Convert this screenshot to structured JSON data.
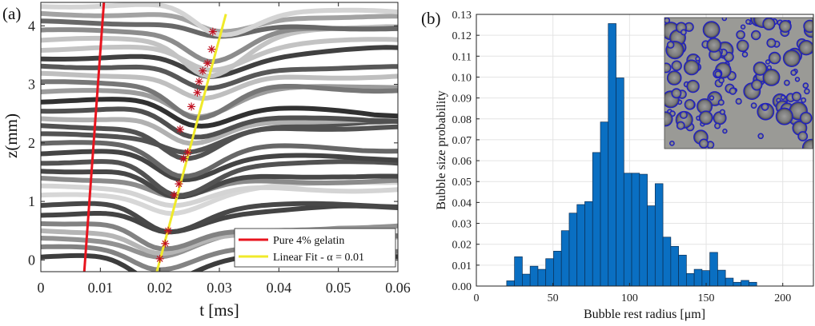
{
  "chart_data": [
    {
      "type": "line",
      "panel_label": "(a)",
      "xlabel": "t [ms]",
      "ylabel": "z(mm)",
      "xlim": [
        0,
        0.06
      ],
      "ylim": [
        -0.2,
        4.4
      ],
      "xticks": [
        "0",
        "0.01",
        "0.02",
        "0.03",
        "0.04",
        "0.05",
        "0.06"
      ],
      "yticks": [
        "0",
        "1",
        "2",
        "3",
        "4"
      ],
      "series": [
        {
          "name": "Pure 4% gelatin",
          "color": "#e8141e",
          "x": [
            0.0073,
            0.0106
          ],
          "y": [
            -0.2,
            4.4
          ]
        },
        {
          "name": "Linear Fit - α = 0.01",
          "color": "#f0ea2a",
          "x": [
            0.0195,
            0.0311
          ],
          "y": [
            -0.2,
            4.2
          ]
        }
      ],
      "legend": [
        "Pure 4% gelatin",
        "Linear Fit - α = 0.01"
      ],
      "legend_symbol": "α",
      "legend_position": "bottom-right",
      "markers": {
        "color": "#c01020",
        "points": [
          [
            0.02,
            0.02
          ],
          [
            0.0209,
            0.28
          ],
          [
            0.0214,
            0.5
          ],
          [
            0.0224,
            1.11
          ],
          [
            0.0232,
            1.3
          ],
          [
            0.024,
            1.73
          ],
          [
            0.0247,
            1.84
          ],
          [
            0.0234,
            2.23
          ],
          [
            0.0253,
            2.62
          ],
          [
            0.0263,
            2.86
          ],
          [
            0.0266,
            3.05
          ],
          [
            0.0272,
            3.23
          ],
          [
            0.028,
            3.36
          ],
          [
            0.0287,
            3.6
          ],
          [
            0.0289,
            3.9
          ]
        ]
      },
      "trace_count": 30,
      "grid": false
    },
    {
      "type": "bar",
      "panel_label": "(b)",
      "xlabel": "Bubble rest radius [μm]",
      "ylabel": "Bubble size probability",
      "xlim": [
        0,
        220
      ],
      "ylim": [
        0,
        0.13
      ],
      "xticks": [
        "0",
        "50",
        "100",
        "150",
        "200"
      ],
      "yticks": [
        "0.00",
        "0.01",
        "0.02",
        "0.03",
        "0.04",
        "0.05",
        "0.06",
        "0.07",
        "0.08",
        "0.09",
        "0.10",
        "0.11",
        "0.12",
        "0.13"
      ],
      "bin_width": 5.1,
      "bin_start": 19.8,
      "values": [
        0.0025,
        0.014,
        0.0057,
        0.0095,
        0.008,
        0.0131,
        0.0167,
        0.0265,
        0.0349,
        0.039,
        0.0404,
        0.0639,
        0.0785,
        0.1256,
        0.0996,
        0.054,
        0.054,
        0.0535,
        0.0384,
        0.049,
        0.0234,
        0.019,
        0.0148,
        0.006,
        0.008,
        0.0074,
        0.0161,
        0.0076,
        0.0038,
        0.0018,
        0.0027,
        0.0018
      ],
      "bar_color": "#0a6fc2",
      "grid": true,
      "inset": "bubble micrograph"
    }
  ]
}
